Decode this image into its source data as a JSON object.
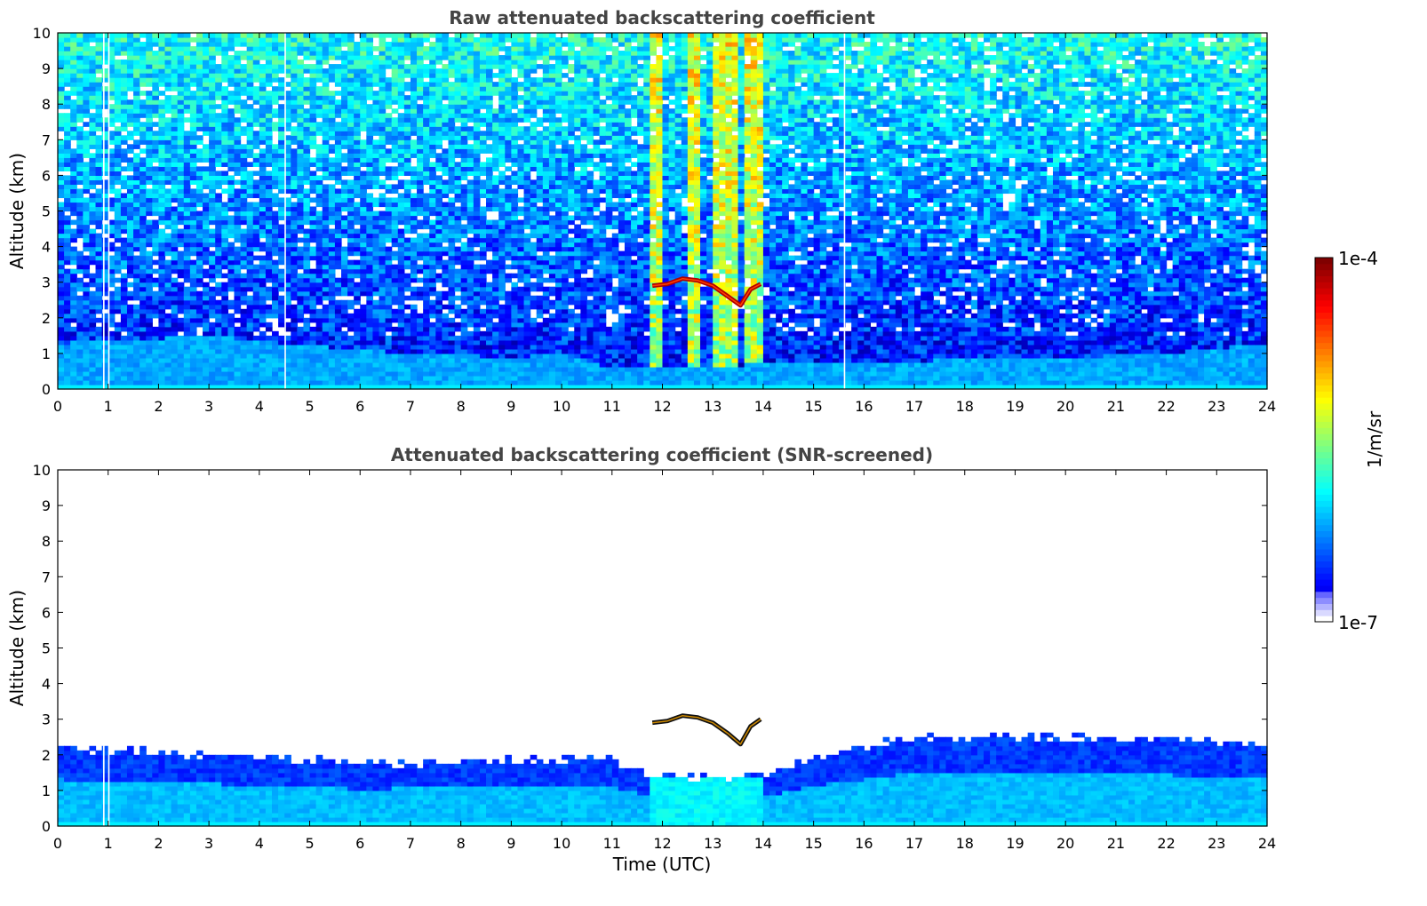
{
  "chart_data": [
    {
      "type": "heatmap",
      "title": "Raw attenuated backscattering coefficient",
      "xlabel": "",
      "ylabel": "Altitude (km)",
      "xlim": [
        0,
        24
      ],
      "ylim": [
        0,
        10
      ],
      "xticks": [
        "0",
        "1",
        "2",
        "3",
        "4",
        "5",
        "6",
        "7",
        "8",
        "9",
        "10",
        "11",
        "12",
        "13",
        "14",
        "15",
        "16",
        "17",
        "18",
        "19",
        "20",
        "21",
        "22",
        "23",
        "24"
      ],
      "yticks": [
        "0",
        "1",
        "2",
        "3",
        "4",
        "5",
        "6",
        "7",
        "8",
        "9",
        "10"
      ],
      "screened": false,
      "boundary_layer_top_km": [
        {
          "t": 0,
          "z": 1.3
        },
        {
          "t": 3,
          "z": 1.5
        },
        {
          "t": 6,
          "z": 1.1
        },
        {
          "t": 9,
          "z": 0.9
        },
        {
          "t": 10,
          "z": 1.0
        },
        {
          "t": 11,
          "z": 0.6
        },
        {
          "t": 14,
          "z": 0.7
        },
        {
          "t": 17,
          "z": 0.8
        },
        {
          "t": 20,
          "z": 0.9
        },
        {
          "t": 22,
          "z": 1.0
        },
        {
          "t": 24,
          "z": 1.3
        }
      ],
      "cloud_layer": [
        {
          "t": 11.8,
          "z": 2.9
        },
        {
          "t": 12.1,
          "z": 2.95
        },
        {
          "t": 12.4,
          "z": 3.1
        },
        {
          "t": 12.7,
          "z": 3.05
        },
        {
          "t": 13.0,
          "z": 2.9
        },
        {
          "t": 13.3,
          "z": 2.6
        },
        {
          "t": 13.55,
          "z": 2.35
        },
        {
          "t": 13.75,
          "z": 2.8
        },
        {
          "t": 13.95,
          "z": 2.95
        }
      ],
      "precip_columns_utc": [
        [
          11.7,
          12.0
        ],
        [
          12.5,
          12.8
        ],
        [
          13.0,
          13.5
        ],
        [
          13.6,
          13.95
        ]
      ],
      "gap_columns_utc": [
        0.9,
        1.0,
        4.5,
        15.6
      ]
    },
    {
      "type": "heatmap",
      "title": "Attenuated backscattering coefficient (SNR-screened)",
      "xlabel": "Time (UTC)",
      "ylabel": "Altitude (km)",
      "xlim": [
        0,
        24
      ],
      "ylim": [
        0,
        10
      ],
      "xticks": [
        "0",
        "1",
        "2",
        "3",
        "4",
        "5",
        "6",
        "7",
        "8",
        "9",
        "10",
        "11",
        "12",
        "13",
        "14",
        "15",
        "16",
        "17",
        "18",
        "19",
        "20",
        "21",
        "22",
        "23",
        "24"
      ],
      "yticks": [
        "0",
        "1",
        "2",
        "3",
        "4",
        "5",
        "6",
        "7",
        "8",
        "9",
        "10"
      ],
      "screened": true,
      "signal_top_km": [
        {
          "t": 0,
          "z": 2.2
        },
        {
          "t": 3,
          "z": 2.0
        },
        {
          "t": 6,
          "z": 1.75
        },
        {
          "t": 9,
          "z": 1.85
        },
        {
          "t": 11,
          "z": 1.9
        },
        {
          "t": 11.7,
          "z": 1.4
        },
        {
          "t": 14,
          "z": 1.4
        },
        {
          "t": 15,
          "z": 1.9
        },
        {
          "t": 17,
          "z": 2.5
        },
        {
          "t": 20,
          "z": 2.5
        },
        {
          "t": 24,
          "z": 2.3
        }
      ],
      "cloud_layer": [
        {
          "t": 11.8,
          "z": 2.9
        },
        {
          "t": 12.1,
          "z": 2.95
        },
        {
          "t": 12.4,
          "z": 3.1
        },
        {
          "t": 12.7,
          "z": 3.05
        },
        {
          "t": 13.0,
          "z": 2.9
        },
        {
          "t": 13.3,
          "z": 2.6
        },
        {
          "t": 13.55,
          "z": 2.3
        },
        {
          "t": 13.75,
          "z": 2.8
        },
        {
          "t": 13.95,
          "z": 3.0
        }
      ],
      "gap_columns_utc": [
        0.9,
        1.0
      ]
    }
  ],
  "colorbar": {
    "label": "1/m/sr",
    "max_label": "1e-4",
    "min_label": "1e-7",
    "scale": "log",
    "colormap": "jet",
    "colors": [
      "#ffffff",
      "#c8c8ff",
      "#0000ff",
      "#0080ff",
      "#00ffff",
      "#80ff80",
      "#ffff00",
      "#ff8000",
      "#ff0000",
      "#800000"
    ]
  }
}
